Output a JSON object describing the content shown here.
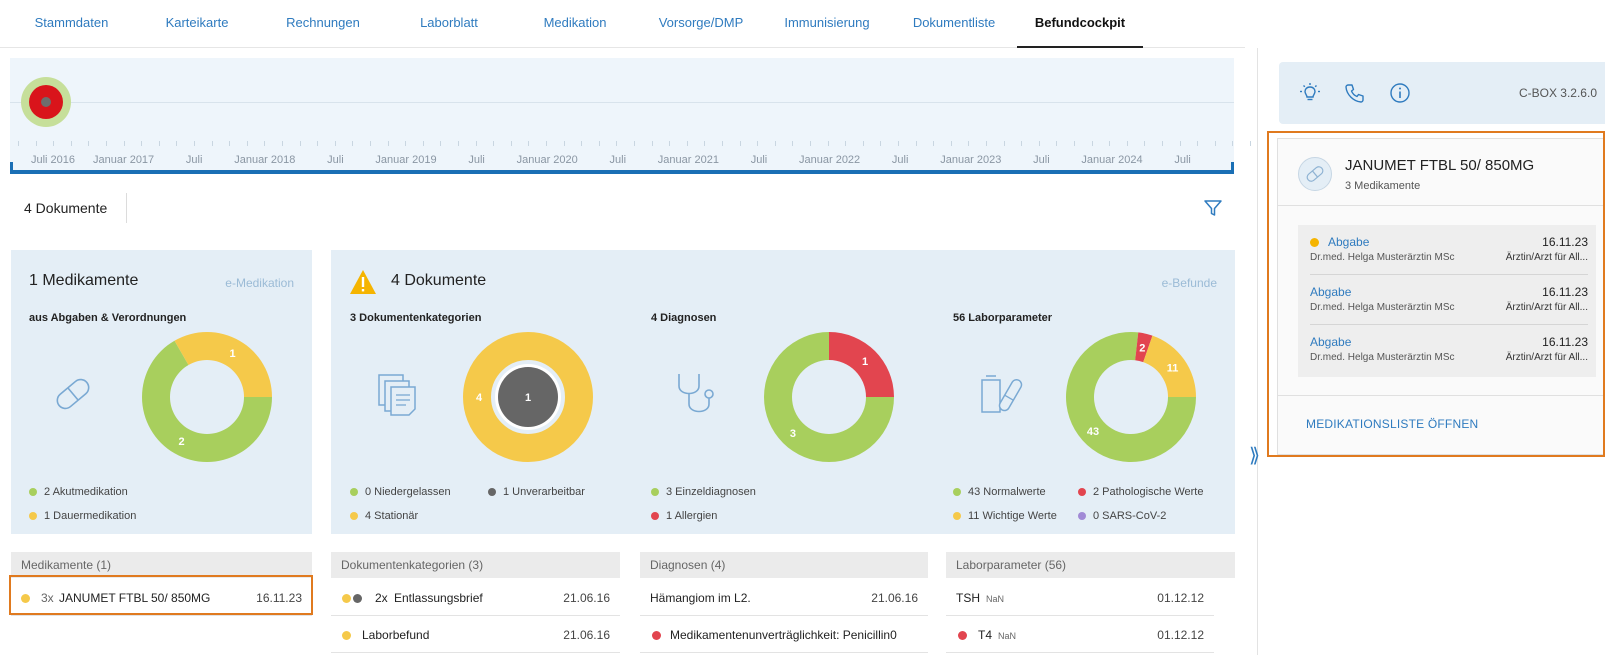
{
  "tabs": [
    {
      "label": "Stammdaten"
    },
    {
      "label": "Karteikarte"
    },
    {
      "label": "Rechnungen"
    },
    {
      "label": "Laborblatt"
    },
    {
      "label": "Medikation"
    },
    {
      "label": "Vorsorge/DMP"
    },
    {
      "label": "Immunisierung"
    },
    {
      "label": "Dokumentliste"
    },
    {
      "label": "Befundcockpit"
    }
  ],
  "active_tab": "Befundcockpit",
  "timeline": {
    "labels": [
      "Juli 2016",
      "Januar 2017",
      "Juli",
      "Januar 2018",
      "Juli",
      "Januar 2019",
      "Juli",
      "Januar 2020",
      "Juli",
      "Januar 2021",
      "Juli",
      "Januar 2022",
      "Juli",
      "Januar 2023",
      "Juli",
      "Januar 2024",
      "Juli"
    ]
  },
  "toolbar": {
    "document_count": "4 Dokumente"
  },
  "colors": {
    "green": "#a8cf5d",
    "yellow": "#f5c94a",
    "red": "#e2454f",
    "gray": "#666666",
    "purple": "#a18ad6",
    "accent_blue": "#2f7bbf",
    "highlight_orange": "#e07a1f"
  },
  "medikamente_card": {
    "title": "1 Medikamente",
    "link": "e-Medikation",
    "subtitle": "aus Abgaben & Verordnungen",
    "icon": "pill-icon",
    "donut": [
      {
        "label": "2",
        "value": 2,
        "color": "#a8cf5d"
      },
      {
        "label": "1",
        "value": 1,
        "color": "#f5c94a"
      }
    ],
    "legend": [
      {
        "text": "2 Akutmedikation",
        "color": "#a8cf5d"
      },
      {
        "text": "1 Dauermedikation",
        "color": "#f5c94a"
      }
    ]
  },
  "dokumente_card": {
    "title": "4 Dokumente",
    "link": "e-Befunde",
    "warning_icon": "warning-icon",
    "sections": {
      "kategorien": {
        "subtitle": "3 Dokumentenkategorien",
        "icon": "documents-icon",
        "outer_label": "4",
        "inner_label": "1",
        "legend": [
          {
            "text": "0 Niedergelassen",
            "color": "#a8cf5d"
          },
          {
            "text": "1 Unverarbeitbar",
            "color": "#666666"
          },
          {
            "text": "4 Stationär",
            "color": "#f5c94a"
          }
        ]
      },
      "diagnosen": {
        "subtitle": "4 Diagnosen",
        "icon": "stethoscope-icon",
        "donut": [
          {
            "label": "3",
            "value": 3,
            "color": "#a8cf5d"
          },
          {
            "label": "1",
            "value": 1,
            "color": "#e2454f"
          }
        ],
        "legend": [
          {
            "text": "3 Einzeldiagnosen",
            "color": "#a8cf5d"
          },
          {
            "text": "1 Allergien",
            "color": "#e2454f"
          }
        ]
      },
      "labor": {
        "subtitle": "56 Laborparameter",
        "icon": "lab-icon",
        "donut": [
          {
            "label": "43",
            "value": 43,
            "color": "#a8cf5d"
          },
          {
            "label": "2",
            "value": 2,
            "color": "#e2454f"
          },
          {
            "label": "11",
            "value": 11,
            "color": "#f5c94a"
          }
        ],
        "legend": [
          {
            "text": "43 Normalwerte",
            "color": "#a8cf5d"
          },
          {
            "text": "2 Pathologische Werte",
            "color": "#e2454f"
          },
          {
            "text": "11 Wichtige Werte",
            "color": "#f5c94a"
          },
          {
            "text": "0 SARS-CoV-2",
            "color": "#a18ad6"
          }
        ]
      }
    }
  },
  "lists": {
    "medikamente": {
      "header": "Medikamente (1)",
      "rows": [
        {
          "prefix": "3x",
          "text": "JANUMET FTBL 50/ 850MG",
          "date": "16.11.23"
        }
      ]
    },
    "kategorien": {
      "header": "Dokumentenkategorien (3)",
      "rows": [
        {
          "prefix": "2x",
          "text": "Entlassungsbrief",
          "date": "21.06.16"
        },
        {
          "text": "Laborbefund",
          "date": "21.06.16"
        }
      ]
    },
    "diagnosen": {
      "header": "Diagnosen (4)",
      "rows": [
        {
          "text": "Hämangiom im L2.",
          "date": "21.06.16"
        },
        {
          "text": "Medikamentenunverträglichkeit: Penicillin0",
          "date": ""
        }
      ]
    },
    "labor": {
      "header": "Laborparameter (56)",
      "rows": [
        {
          "text": "TSH",
          "nan": "NaN",
          "date": "01.12.12"
        },
        {
          "text": "T4",
          "nan": "NaN",
          "date": "01.12.12"
        }
      ]
    }
  },
  "right_panel": {
    "icons": [
      "lightbulb-icon",
      "phone-icon",
      "info-icon"
    ],
    "version": "C-BOX 3.2.6.0",
    "medication": {
      "title": "JANUMET FTBL 50/ 850MG",
      "subtitle": "3 Medikamente",
      "items": [
        {
          "label": "Abgabe",
          "date": "16.11.23",
          "doctor": "Dr.med. Helga Musterärztin MSc",
          "role": "Ärztin/Arzt für All..."
        },
        {
          "label": "Abgabe",
          "date": "16.11.23",
          "doctor": "Dr.med. Helga Musterärztin MSc",
          "role": "Ärztin/Arzt für All..."
        },
        {
          "label": "Abgabe",
          "date": "16.11.23",
          "doctor": "Dr.med. Helga Musterärztin MSc",
          "role": "Ärztin/Arzt für All..."
        }
      ],
      "open_link": "MEDIKATIONSLISTE ÖFFNEN"
    },
    "collapse_glyph": "⟫"
  }
}
